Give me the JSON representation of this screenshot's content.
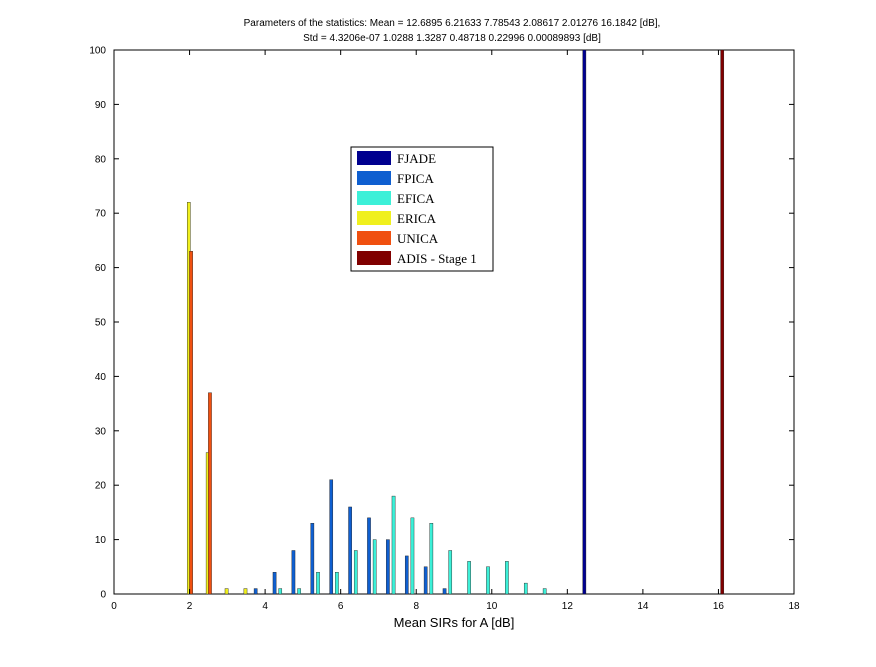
{
  "chart_data": {
    "type": "bar",
    "title_lines": [
      "Parameters of the statistics:  Mean = 12.6895      6.21633     7.78543     2.08617     2.01276      16.1842 [dB],",
      "Std = 4.3206e-07      1.0288      1.3287     0.48718    0.22996  0.00089893 [dB]"
    ],
    "xlabel": "Mean SIRs for A [dB]",
    "ylabel": "",
    "xlim": [
      0,
      18
    ],
    "ylim": [
      0,
      100
    ],
    "xticks": [
      0,
      2,
      4,
      6,
      8,
      10,
      12,
      14,
      16,
      18
    ],
    "yticks": [
      0,
      10,
      20,
      30,
      40,
      50,
      60,
      70,
      80,
      90,
      100
    ],
    "legend_position": "upper-center",
    "series": [
      {
        "name": "FJADE",
        "color": "#00008f",
        "points": [
          [
            12.45,
            100
          ]
        ]
      },
      {
        "name": "FPICA",
        "color": "#0f5fd0",
        "points": [
          [
            3.75,
            1
          ],
          [
            4.25,
            4
          ],
          [
            4.75,
            8
          ],
          [
            5.25,
            13
          ],
          [
            5.75,
            21
          ],
          [
            6.25,
            16
          ],
          [
            6.75,
            14
          ],
          [
            7.25,
            10
          ],
          [
            7.75,
            7
          ],
          [
            8.25,
            5
          ],
          [
            8.75,
            1
          ]
        ]
      },
      {
        "name": "EFICA",
        "color": "#3cf0d8",
        "points": [
          [
            4.4,
            1
          ],
          [
            4.9,
            1
          ],
          [
            5.4,
            4
          ],
          [
            5.9,
            4
          ],
          [
            6.4,
            8
          ],
          [
            6.9,
            10
          ],
          [
            7.4,
            18
          ],
          [
            7.9,
            14
          ],
          [
            8.4,
            13
          ],
          [
            8.9,
            8
          ],
          [
            9.4,
            6
          ],
          [
            9.9,
            5
          ],
          [
            10.4,
            6
          ],
          [
            10.9,
            2
          ],
          [
            11.4,
            1
          ]
        ]
      },
      {
        "name": "ERICA",
        "color": "#f0f01e",
        "points": [
          [
            1.98,
            72
          ],
          [
            2.48,
            26
          ],
          [
            2.98,
            1
          ],
          [
            3.48,
            1
          ]
        ]
      },
      {
        "name": "UNICA",
        "color": "#f05010",
        "points": [
          [
            2.04,
            63
          ],
          [
            2.54,
            37
          ]
        ]
      },
      {
        "name": "ADIS - Stage 1",
        "color": "#800000",
        "points": [
          [
            16.1,
            100
          ]
        ]
      }
    ]
  }
}
